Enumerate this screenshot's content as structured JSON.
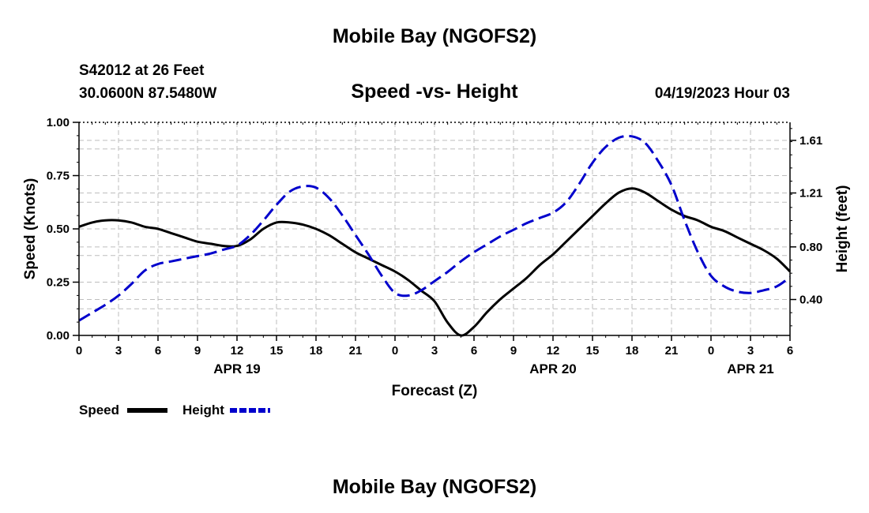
{
  "page": {
    "header_title": "Mobile Bay (NGOFS2)",
    "footer_title": "Mobile Bay (NGOFS2)",
    "station": "S42012 at 26 Feet",
    "location": "30.0600N  87.5480W",
    "chart_title": "Speed -vs- Height",
    "datetime": "04/19/2023 Hour 03"
  },
  "colors": {
    "speed": "#000000",
    "height": "#0000cc",
    "grid": "#bdbdbd"
  },
  "chart_data": {
    "type": "line",
    "title": "Speed -vs- Height",
    "xlabel": "Forecast (Z)",
    "ylabel": "Speed (Knots)",
    "y2label": "Height (feet)",
    "xlim": [
      0,
      54
    ],
    "ylim": [
      0,
      1.0
    ],
    "y2lim": [
      0.127,
      1.747
    ],
    "x_ticks": [
      0,
      3,
      6,
      9,
      12,
      15,
      18,
      21,
      24,
      27,
      30,
      33,
      36,
      39,
      42,
      45,
      48,
      51,
      54
    ],
    "x_tick_labels": [
      "0",
      "3",
      "6",
      "9",
      "12",
      "15",
      "18",
      "21",
      "0",
      "3",
      "6",
      "9",
      "12",
      "15",
      "18",
      "21",
      "0",
      "3",
      "6"
    ],
    "date_labels": [
      {
        "x": 12,
        "label": "APR 19"
      },
      {
        "x": 36,
        "label": "APR 20"
      },
      {
        "x": 51,
        "label": "APR 21"
      }
    ],
    "y_ticks": [
      0.0,
      0.25,
      0.5,
      0.75,
      1.0
    ],
    "y_tick_labels": [
      "0.00",
      "0.25",
      "0.50",
      "0.75",
      "1.00"
    ],
    "y2_ticks": [
      0.4,
      0.8,
      1.21,
      1.61
    ],
    "y2_tick_labels": [
      "0.40",
      "0.80",
      "1.21",
      "1.61"
    ],
    "legend_position": "bottom-left",
    "series": [
      {
        "name": "Speed",
        "axis": "left",
        "style": "solid",
        "x": [
          0,
          1,
          2,
          3,
          4,
          5,
          6,
          7,
          8,
          9,
          10,
          11,
          12,
          13,
          14,
          15,
          16,
          17,
          18,
          19,
          20,
          21,
          22,
          23,
          24,
          25,
          26,
          27,
          28,
          29,
          30,
          31,
          32,
          33,
          34,
          35,
          36,
          37,
          38,
          39,
          40,
          41,
          42,
          43,
          44,
          45,
          46,
          47,
          48,
          49,
          50,
          51,
          52,
          53,
          54
        ],
        "values": [
          0.51,
          0.53,
          0.54,
          0.54,
          0.53,
          0.51,
          0.5,
          0.48,
          0.46,
          0.44,
          0.43,
          0.42,
          0.42,
          0.45,
          0.5,
          0.53,
          0.53,
          0.52,
          0.5,
          0.47,
          0.43,
          0.39,
          0.36,
          0.33,
          0.3,
          0.26,
          0.21,
          0.16,
          0.06,
          0.0,
          0.04,
          0.11,
          0.17,
          0.22,
          0.27,
          0.33,
          0.38,
          0.44,
          0.5,
          0.56,
          0.62,
          0.67,
          0.69,
          0.67,
          0.63,
          0.59,
          0.56,
          0.54,
          0.51,
          0.49,
          0.46,
          0.43,
          0.4,
          0.36,
          0.3
        ]
      },
      {
        "name": "Height",
        "axis": "right",
        "style": "dashed",
        "x": [
          0,
          1,
          2,
          3,
          4,
          5,
          6,
          7,
          8,
          9,
          10,
          11,
          12,
          13,
          14,
          15,
          16,
          17,
          18,
          19,
          20,
          21,
          22,
          23,
          24,
          25,
          26,
          27,
          28,
          29,
          30,
          31,
          32,
          33,
          34,
          35,
          36,
          37,
          38,
          39,
          40,
          41,
          42,
          43,
          44,
          45,
          46,
          47,
          48,
          49,
          50,
          51,
          52,
          53,
          54
        ],
        "values": [
          0.24,
          0.3,
          0.36,
          0.43,
          0.52,
          0.62,
          0.67,
          0.69,
          0.71,
          0.73,
          0.75,
          0.78,
          0.81,
          0.89,
          1.0,
          1.12,
          1.22,
          1.26,
          1.25,
          1.17,
          1.04,
          0.89,
          0.74,
          0.58,
          0.45,
          0.43,
          0.47,
          0.54,
          0.61,
          0.69,
          0.76,
          0.82,
          0.88,
          0.93,
          0.98,
          1.02,
          1.06,
          1.14,
          1.28,
          1.44,
          1.56,
          1.63,
          1.64,
          1.59,
          1.45,
          1.27,
          1.0,
          0.76,
          0.58,
          0.5,
          0.46,
          0.45,
          0.47,
          0.5,
          0.57
        ]
      }
    ]
  }
}
